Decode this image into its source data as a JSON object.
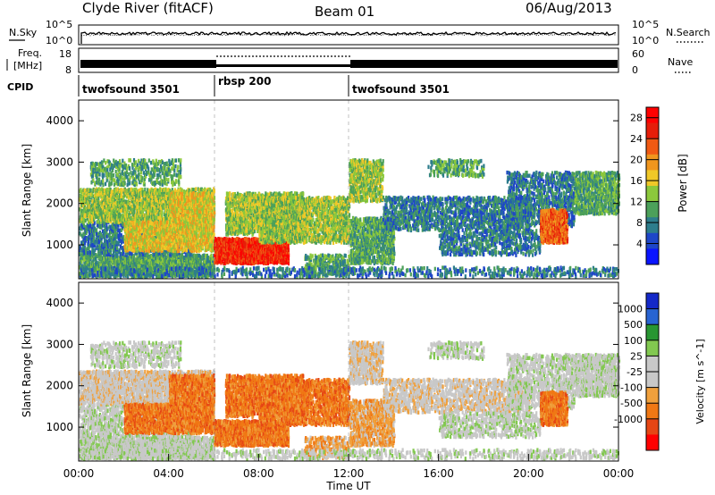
{
  "header": {
    "station": "Clyde River (fitACF)",
    "beam": "Beam 01",
    "date": "06/Aug/2013"
  },
  "noise_panel": {
    "left_label": "N.Sky",
    "right_label": "N.Search",
    "ticks_left": [
      "10^5",
      "10^0"
    ],
    "ticks_right": [
      "10^5",
      "10^0"
    ]
  },
  "freq_panel": {
    "left_label_top": "Freq.",
    "left_label_bottom": "[MHz]",
    "left_ticks": [
      "18",
      "8"
    ],
    "right_ticks": [
      "60",
      "0"
    ],
    "right_label": "Nave"
  },
  "cpid": {
    "label": "CPID",
    "segments": [
      {
        "name": "twofsound 3501",
        "start_hour": 0
      },
      {
        "name": "rbsp 200",
        "start_hour": 6
      },
      {
        "name": "twofsound 3501",
        "start_hour": 12
      }
    ]
  },
  "colors": {
    "power_scale": [
      "#0a14ff",
      "#1e46c8",
      "#2d7d8c",
      "#4ca05a",
      "#8cc83c",
      "#f0c828",
      "#f0961e",
      "#f05a14",
      "#e61e0a",
      "#ff0000"
    ],
    "velocity_scale": [
      "#1428c8",
      "#2864d2",
      "#289632",
      "#82c850",
      "#c8c8c8",
      "#c8c8c8",
      "#f0a03c",
      "#f07814",
      "#e64614",
      "#ff0000"
    ]
  },
  "chart_data": [
    {
      "type": "heatmap",
      "panel": "power",
      "xlabel": "",
      "ylabel": "Slant Range [km]",
      "xlim": [
        0,
        24
      ],
      "ylim": [
        180,
        4500
      ],
      "yticks": [
        "1000",
        "2000",
        "3000",
        "4000"
      ],
      "colorbar": {
        "label": "Power [dB]",
        "ticks": [
          "4",
          "8",
          "12",
          "16",
          "20",
          "24",
          "28"
        ],
        "range": [
          0,
          30
        ]
      },
      "mode_boundaries_hours": [
        6,
        12
      ]
    },
    {
      "type": "heatmap",
      "panel": "velocity",
      "xlabel": "Time UT",
      "ylabel": "Slant Range [km]",
      "xlim": [
        0,
        24
      ],
      "ylim": [
        180,
        4500
      ],
      "xticks": [
        "00:00",
        "04:00",
        "08:00",
        "12:00",
        "16:00",
        "20:00",
        "00:00"
      ],
      "yticks": [
        "1000",
        "2000",
        "3000",
        "4000"
      ],
      "colorbar": {
        "label": "Velocity [m s^-1]",
        "ticks": [
          "1000",
          "500",
          "100",
          "25",
          "-25",
          "-100",
          "-500",
          "-1000"
        ]
      },
      "mode_boundaries_hours": [
        6,
        12
      ]
    }
  ]
}
